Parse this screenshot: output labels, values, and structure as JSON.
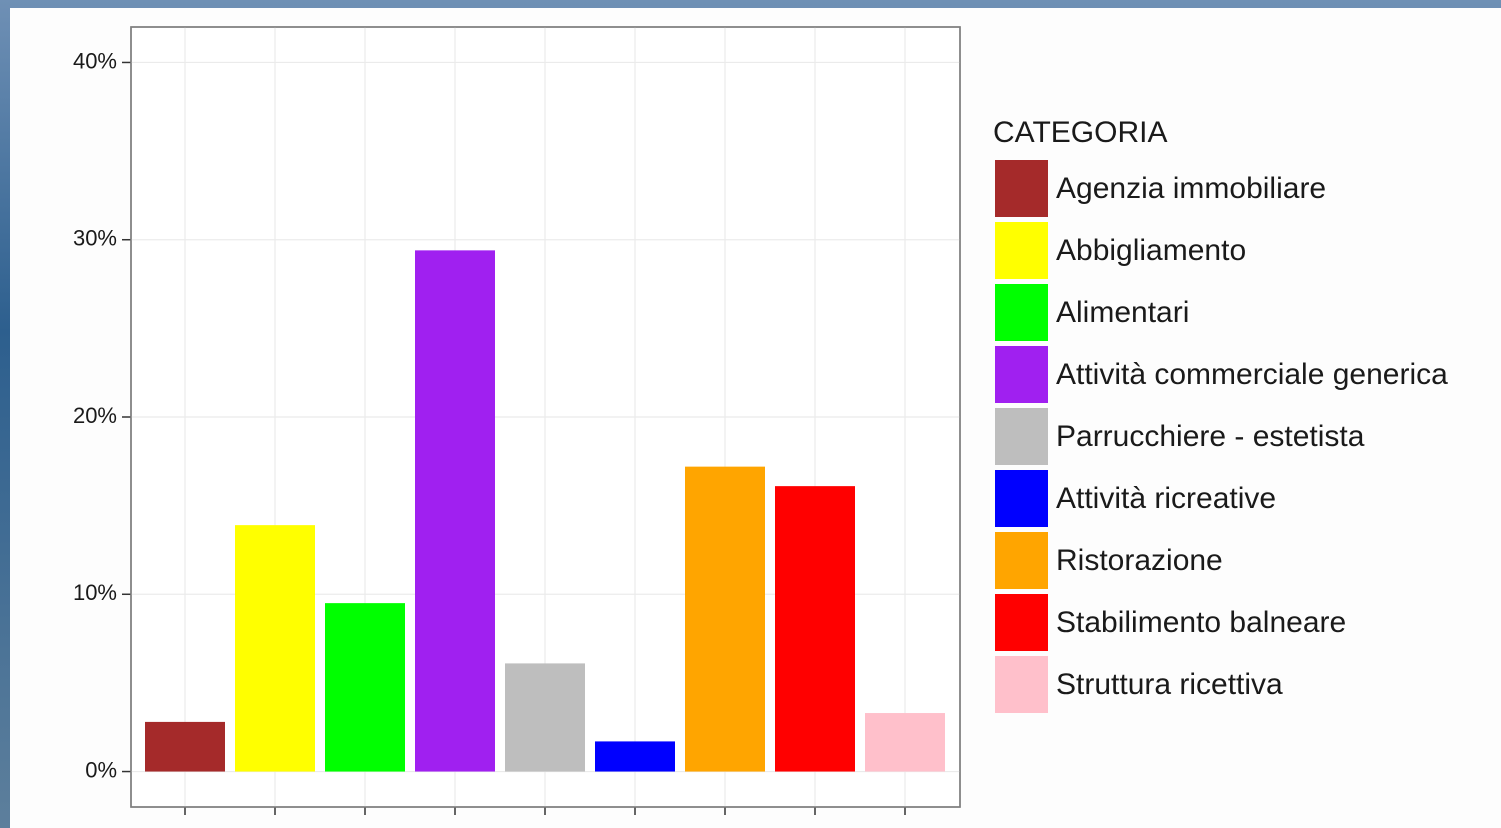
{
  "chart_data": {
    "type": "bar",
    "legend_title": "CATEGORIA",
    "categories": [
      "Agenzia immobiliare",
      "Abbigliamento",
      "Alimentari",
      "Attività commerciale generica",
      "Parrucchiere - estetista",
      "Attività ricreative",
      "Ristorazione",
      "Stabilimento balneare",
      "Struttura ricettiva"
    ],
    "values": [
      2.8,
      13.9,
      9.5,
      29.4,
      6.1,
      1.7,
      17.2,
      16.1,
      3.3
    ],
    "colors": [
      "#a52a2a",
      "#ffff00",
      "#00ff00",
      "#a020f0",
      "#bebebe",
      "#0000ff",
      "#ffa500",
      "#ff0000",
      "#ffc0cb"
    ],
    "ylim": [
      -2,
      42
    ],
    "yticks": [
      {
        "value": 0,
        "label": "0%"
      },
      {
        "value": 10,
        "label": "10%"
      },
      {
        "value": 20,
        "label": "20%"
      },
      {
        "value": 30,
        "label": "30%"
      },
      {
        "value": 40,
        "label": "40%"
      }
    ],
    "grid": true,
    "legend_position": "right"
  }
}
